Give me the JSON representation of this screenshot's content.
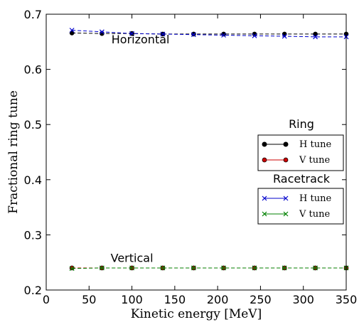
{
  "chart_data": {
    "type": "line",
    "xlabel": "Kinetic energy [MeV]",
    "ylabel": "Fractional ring tune",
    "xlim": [
      0,
      350
    ],
    "ylim": [
      0.2,
      0.7
    ],
    "xticks": [
      0,
      50,
      100,
      150,
      200,
      250,
      300,
      350
    ],
    "yticks": [
      0.2,
      0.3,
      0.4,
      0.5,
      0.6,
      0.7
    ],
    "xtick_labels": [
      "0",
      "50",
      "100",
      "150",
      "200",
      "250",
      "300",
      "350"
    ],
    "ytick_labels": [
      "0.2",
      "0.3",
      "0.4",
      "0.5",
      "0.6",
      "0.7"
    ],
    "grid": false,
    "x": [
      30,
      65,
      100,
      136,
      172,
      207,
      243,
      278,
      314,
      350
    ],
    "series": [
      {
        "name": "H tune",
        "group": "Ring",
        "color": "#000000",
        "marker": "circle",
        "linestyle": "dashed",
        "values": [
          0.666,
          0.665,
          0.665,
          0.664,
          0.664,
          0.664,
          0.664,
          0.664,
          0.664,
          0.664
        ]
      },
      {
        "name": "V tune",
        "group": "Ring",
        "color": "#cc0000",
        "marker": "circle",
        "linestyle": "dashed",
        "values": [
          0.24,
          0.24,
          0.24,
          0.24,
          0.24,
          0.24,
          0.24,
          0.24,
          0.24,
          0.24
        ]
      },
      {
        "name": "H tune",
        "group": "Racetrack",
        "color": "#0000cc",
        "marker": "x",
        "linestyle": "dashed",
        "values": [
          0.671,
          0.668,
          0.665,
          0.664,
          0.663,
          0.662,
          0.661,
          0.66,
          0.659,
          0.659
        ]
      },
      {
        "name": "V tune",
        "group": "Racetrack",
        "color": "#008000",
        "marker": "x",
        "linestyle": "dashed",
        "values": [
          0.239,
          0.24,
          0.24,
          0.24,
          0.24,
          0.24,
          0.24,
          0.24,
          0.24,
          0.24
        ]
      }
    ],
    "annotations": [
      {
        "text": "Horizontal",
        "x": 110,
        "y": 0.647
      },
      {
        "text": "Vertical",
        "x": 100,
        "y": 0.251
      }
    ],
    "legends": [
      {
        "title": "Ring",
        "placement": "right",
        "entries": [
          "H tune",
          "V tune"
        ]
      },
      {
        "title": "Racetrack",
        "placement": "lower-right",
        "entries": [
          "H tune",
          "V tune"
        ]
      }
    ]
  }
}
